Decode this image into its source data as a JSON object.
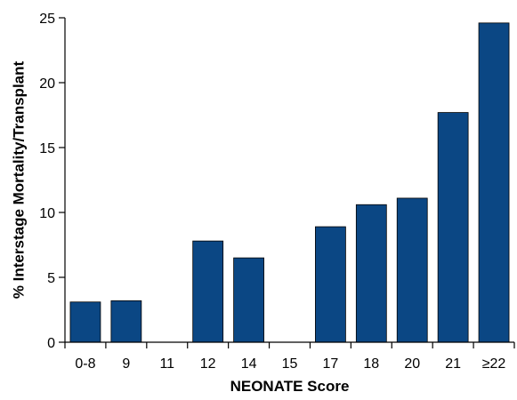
{
  "chart_data": {
    "type": "bar",
    "title": "",
    "xlabel": "NEONATE Score",
    "ylabel": "% Interstage Mortality/Transplant",
    "categories": [
      "0-8",
      "9",
      "11",
      "12",
      "14",
      "15",
      "17",
      "18",
      "20",
      "21",
      "≥22"
    ],
    "values": [
      3.1,
      3.2,
      0,
      7.8,
      6.5,
      0,
      8.9,
      10.6,
      11.1,
      17.7,
      24.6
    ],
    "ylim": [
      0,
      25
    ],
    "yticks": [
      0,
      5,
      10,
      15,
      20,
      25
    ],
    "grid": false,
    "legend": "none",
    "colors": {
      "bar": "#0b4784",
      "bar_edge": "#000000",
      "axis": "#000000"
    }
  }
}
